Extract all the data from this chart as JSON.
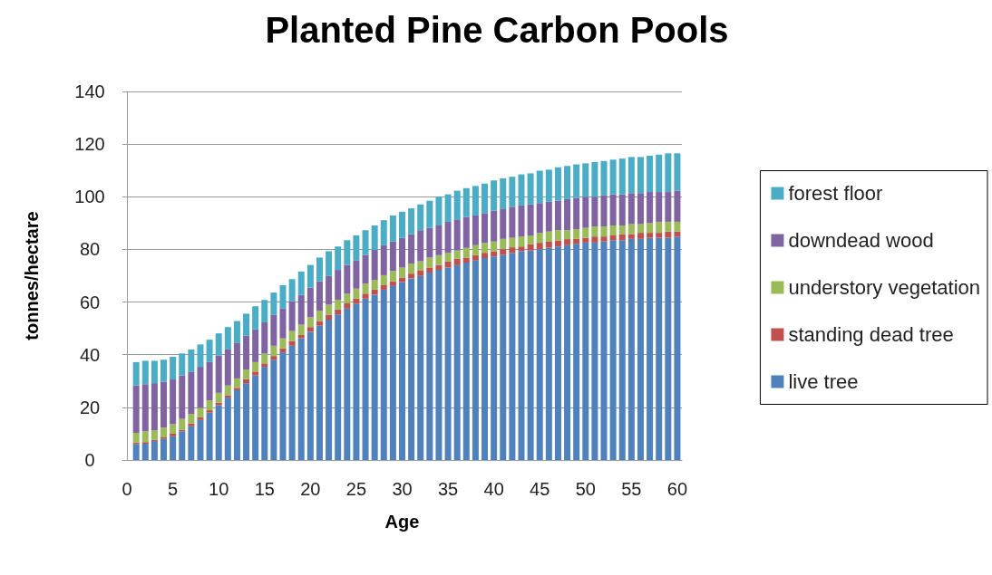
{
  "chart_data": {
    "type": "bar",
    "title": "Planted Pine Carbon Pools",
    "xlabel": "Age",
    "ylabel": "tonnes/hectare",
    "x": [
      1,
      2,
      3,
      4,
      5,
      6,
      7,
      8,
      9,
      10,
      11,
      12,
      13,
      14,
      15,
      16,
      17,
      18,
      19,
      20,
      21,
      22,
      23,
      24,
      25,
      26,
      27,
      28,
      29,
      30,
      31,
      32,
      33,
      34,
      35,
      36,
      37,
      38,
      39,
      40,
      41,
      42,
      43,
      44,
      45,
      46,
      47,
      48,
      49,
      50,
      51,
      52,
      53,
      54,
      55,
      56,
      57,
      58,
      59,
      60
    ],
    "stacked": true,
    "series": [
      {
        "name": "live tree",
        "color": "#4f81bd",
        "values": [
          6.1,
          6.2,
          7.2,
          8.0,
          9.0,
          10.9,
          12.8,
          15.2,
          18.0,
          20.8,
          23.7,
          26.5,
          29.2,
          32.1,
          35.4,
          38.1,
          40.9,
          43.4,
          46.2,
          48.7,
          51.0,
          53.3,
          55.3,
          57.5,
          59.3,
          61.3,
          62.8,
          64.7,
          66.1,
          67.6,
          69.0,
          69.9,
          71.2,
          72.2,
          73.1,
          74.0,
          75.0,
          75.9,
          76.7,
          77.3,
          77.9,
          78.7,
          79.4,
          79.6,
          80.1,
          80.6,
          81.1,
          81.6,
          82.1,
          82.6,
          82.6,
          83.0,
          83.5,
          83.5,
          84.0,
          84.0,
          84.4,
          84.4,
          84.4,
          84.9
        ]
      },
      {
        "name": "standing dead tree",
        "color": "#c0504d",
        "values": [
          0.5,
          0.6,
          0.5,
          0.6,
          1.0,
          0.6,
          1.1,
          1.0,
          0.9,
          1.0,
          0.9,
          0.9,
          1.5,
          1.5,
          1.3,
          1.4,
          1.5,
          1.8,
          1.3,
          1.8,
          1.8,
          1.9,
          1.9,
          2.0,
          2.0,
          1.9,
          1.9,
          1.7,
          1.8,
          1.7,
          1.8,
          2.2,
          1.9,
          1.9,
          2.3,
          2.4,
          1.9,
          1.9,
          2.0,
          2.0,
          2.2,
          2.1,
          1.7,
          2.4,
          2.4,
          2.3,
          2.3,
          2.3,
          1.9,
          1.8,
          2.3,
          1.9,
          1.8,
          2.3,
          1.8,
          2.3,
          1.9,
          1.9,
          2.4,
          1.9
        ]
      },
      {
        "name": "understory vegetation",
        "color": "#9bbb59",
        "values": [
          3.7,
          4.1,
          3.6,
          3.7,
          3.6,
          4.1,
          3.6,
          3.6,
          3.8,
          3.7,
          3.7,
          3.6,
          3.7,
          3.6,
          3.7,
          3.9,
          3.8,
          3.8,
          3.9,
          3.7,
          3.9,
          3.8,
          3.7,
          3.7,
          3.8,
          3.8,
          3.7,
          3.8,
          3.9,
          3.8,
          3.8,
          3.4,
          3.8,
          3.7,
          3.3,
          3.2,
          3.7,
          3.8,
          3.8,
          3.7,
          3.9,
          3.6,
          3.8,
          3.3,
          3.8,
          3.9,
          3.9,
          3.4,
          3.7,
          3.8,
          3.8,
          3.8,
          3.8,
          3.3,
          3.8,
          3.3,
          3.7,
          4.2,
          3.7,
          3.7
        ]
      },
      {
        "name": "downdead wood",
        "color": "#8064a2",
        "values": [
          18.0,
          17.9,
          17.9,
          17.4,
          17.0,
          16.5,
          15.9,
          15.6,
          14.5,
          14.2,
          13.7,
          13.4,
          12.8,
          12.4,
          11.9,
          11.7,
          11.3,
          11.4,
          11.3,
          11.3,
          11.2,
          10.9,
          11.3,
          10.9,
          10.8,
          10.9,
          11.4,
          11.4,
          11.2,
          11.3,
          11.2,
          11.8,
          11.3,
          11.3,
          11.8,
          11.8,
          11.8,
          11.3,
          11.3,
          11.7,
          11.3,
          11.8,
          11.8,
          11.8,
          11.3,
          11.3,
          11.2,
          11.8,
          11.8,
          11.8,
          11.3,
          11.8,
          11.8,
          11.8,
          11.8,
          11.8,
          11.8,
          11.3,
          11.3,
          11.8
        ]
      },
      {
        "name": "forest floor",
        "color": "#4bacc6",
        "values": [
          8.9,
          8.9,
          8.5,
          8.4,
          8.6,
          8.4,
          8.6,
          8.5,
          8.5,
          8.4,
          8.5,
          8.4,
          8.4,
          8.8,
          8.5,
          8.5,
          8.9,
          8.3,
          8.9,
          8.6,
          9.0,
          9.4,
          8.9,
          9.4,
          9.4,
          9.4,
          9.3,
          9.5,
          9.9,
          9.9,
          9.8,
          9.8,
          10.3,
          11.0,
          10.4,
          10.9,
          10.9,
          11.2,
          11.2,
          11.5,
          11.7,
          11.4,
          11.8,
          11.8,
          12.3,
          12.2,
          12.7,
          12.6,
          12.8,
          12.7,
          13.2,
          13.1,
          13.2,
          13.6,
          13.7,
          13.7,
          13.8,
          14.2,
          14.7,
          14.2
        ]
      }
    ],
    "xlim": [
      -0.5,
      60.5
    ],
    "xticks": [
      0,
      5,
      10,
      15,
      20,
      25,
      30,
      35,
      40,
      45,
      50,
      55,
      60
    ],
    "ylim": [
      0,
      140
    ],
    "yticks": [
      0,
      20,
      40,
      60,
      80,
      100,
      120,
      140
    ],
    "grid": "y",
    "legend": "right"
  }
}
